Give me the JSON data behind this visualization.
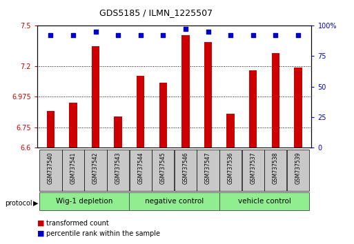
{
  "title": "GDS5185 / ILMN_1225507",
  "samples": [
    "GSM737540",
    "GSM737541",
    "GSM737542",
    "GSM737543",
    "GSM737544",
    "GSM737545",
    "GSM737546",
    "GSM737547",
    "GSM737536",
    "GSM737537",
    "GSM737538",
    "GSM737539"
  ],
  "red_values": [
    6.87,
    6.93,
    7.35,
    6.83,
    7.13,
    7.08,
    7.43,
    7.38,
    6.85,
    7.17,
    7.3,
    7.19
  ],
  "blue_values": [
    92,
    92,
    95,
    92,
    92,
    92,
    97,
    95,
    92,
    92,
    92,
    92
  ],
  "groups": [
    {
      "label": "Wig-1 depletion",
      "start": 0,
      "end": 3
    },
    {
      "label": "negative control",
      "start": 4,
      "end": 7
    },
    {
      "label": "vehicle control",
      "start": 8,
      "end": 11
    }
  ],
  "ylim_left": [
    6.6,
    7.5
  ],
  "ylim_right": [
    0,
    100
  ],
  "yticks_left": [
    6.6,
    6.75,
    6.975,
    7.2,
    7.5
  ],
  "ytick_labels_left": [
    "6.6",
    "6.75",
    "6.975",
    "7.2",
    "7.5"
  ],
  "yticks_right": [
    0,
    25,
    50,
    75,
    100
  ],
  "ytick_labels_right": [
    "0",
    "25",
    "50",
    "75",
    "100%"
  ],
  "red_color": "#CC0000",
  "blue_color": "#0000CC",
  "bar_width": 0.35,
  "group_bg_color": "#90EE90",
  "sample_bg_color": "#C8C8C8",
  "legend_red_label": "transformed count",
  "legend_blue_label": "percentile rank within the sample",
  "protocol_label": "protocol"
}
